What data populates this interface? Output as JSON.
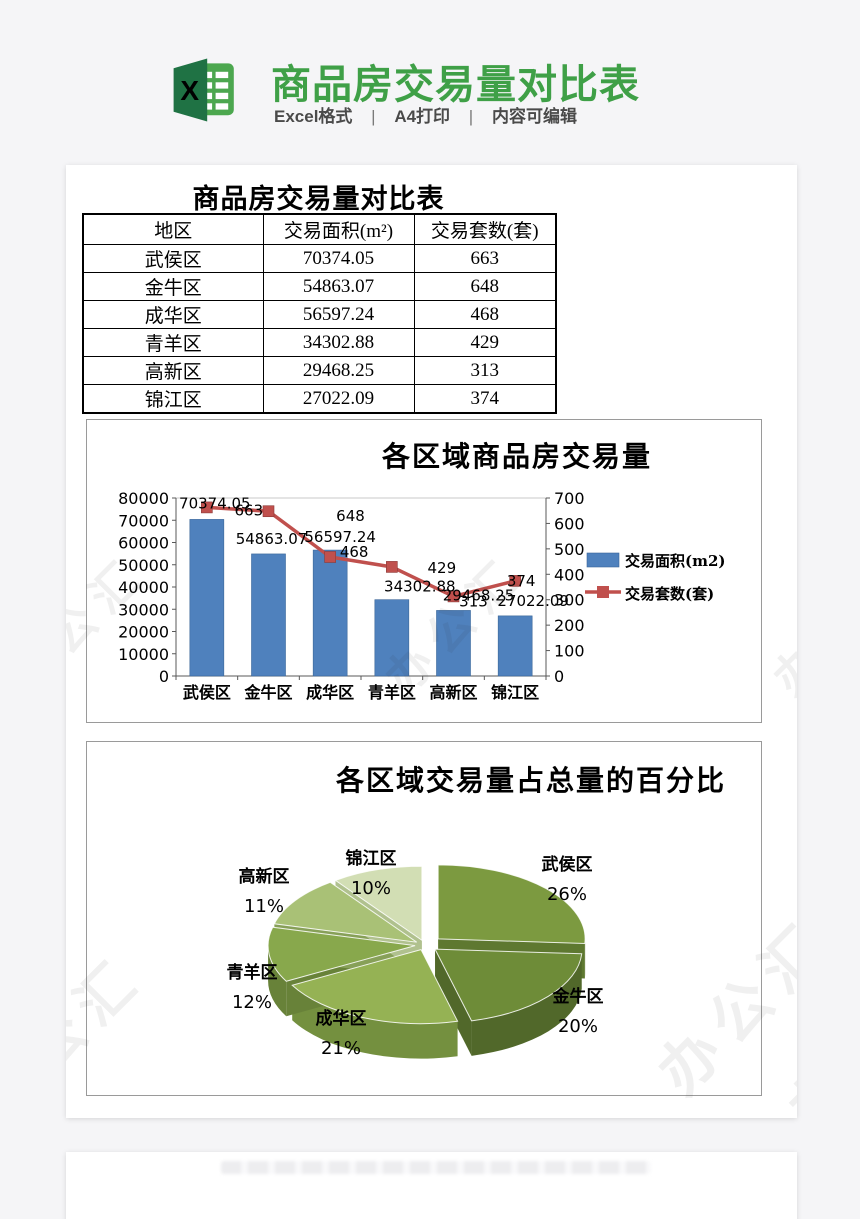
{
  "header": {
    "title": "商品房交易量对比表",
    "subtitle_parts": [
      "Excel格式",
      "A4打印",
      "内容可编辑"
    ],
    "separator": "|",
    "logo": "excel-logo",
    "title_color": "#3fa047"
  },
  "document": {
    "watermark": "办公汇",
    "table": {
      "title": "商品房交易量对比表",
      "columns": [
        "地区",
        "交易面积(m²)",
        "交易套数(套)"
      ],
      "rows": [
        [
          "武侯区",
          "70374.05",
          "663"
        ],
        [
          "金牛区",
          "54863.07",
          "648"
        ],
        [
          "成华区",
          "56597.24",
          "468"
        ],
        [
          "青羊区",
          "34302.88",
          "429"
        ],
        [
          "高新区",
          "29468.25",
          "313"
        ],
        [
          "锦江区",
          "27022.09",
          "374"
        ]
      ]
    }
  },
  "chart_data": [
    {
      "type": "bar",
      "subtype": "combo-bar-line",
      "title": "各区域商品房交易量",
      "categories": [
        "武侯区",
        "金牛区",
        "成华区",
        "青羊区",
        "高新区",
        "锦江区"
      ],
      "series": [
        {
          "name": "交易面积(m2)",
          "type": "bar",
          "axis": "left",
          "color": "#4F81BD",
          "values": [
            70374.05,
            54863.07,
            56597.24,
            34302.88,
            29468.25,
            27022.09
          ]
        },
        {
          "name": "交易套数(套)",
          "type": "line",
          "axis": "right",
          "color": "#C0504D",
          "values": [
            663,
            648,
            468,
            429,
            313,
            374
          ]
        }
      ],
      "left_axis": {
        "min": 0,
        "max": 80000,
        "step": 10000
      },
      "right_axis": {
        "min": 0,
        "max": 700,
        "step": 100
      },
      "legend_position": "right",
      "grid": false,
      "data_labels": true
    },
    {
      "type": "pie",
      "style": "3d-exploded",
      "title": "各区域交易量占总量的百分比",
      "labels": [
        "武侯区",
        "金牛区",
        "成华区",
        "青羊区",
        "高新区",
        "锦江区"
      ],
      "values_pct": [
        26,
        20,
        21,
        12,
        11,
        10
      ],
      "colors": [
        "#7C9A40",
        "#6E8C38",
        "#95B254",
        "#88A84C",
        "#A9C176",
        "#D2DEB4"
      ],
      "side_colors": [
        "#5E7830",
        "#51682A",
        "#74903F",
        "#688239",
        "#87A058",
        "#B0C18E"
      ]
    }
  ]
}
